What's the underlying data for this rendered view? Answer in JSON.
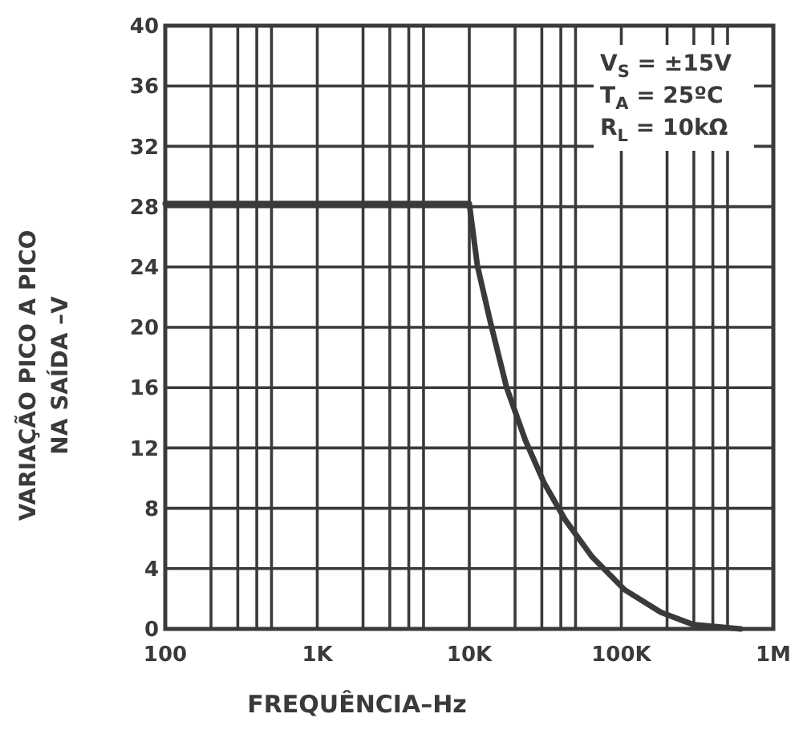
{
  "chart_data": {
    "type": "line",
    "xlabel": "FREQUÊNCIA–Hz",
    "ylabel": "VARIAÇÃO PICO A PICO\nNA SAÍDA –V",
    "log": "x",
    "x": [
      100,
      1000,
      10000,
      11300,
      13800,
      17600,
      23400,
      31000,
      43000,
      64000,
      105000,
      182000,
      295000,
      610000
    ],
    "series": [
      {
        "color": "#3a3a3a",
        "values": [
          28.2,
          28.2,
          28.2,
          24.1,
          20.3,
          16.0,
          12.5,
          9.7,
          7.2,
          4.8,
          2.6,
          1.1,
          0.3,
          0
        ]
      }
    ],
    "xlim": [
      100,
      1000000
    ],
    "xticks": [
      {
        "value": 100,
        "label": "100"
      },
      {
        "value": 200,
        "label": null
      },
      {
        "value": 300,
        "label": null
      },
      {
        "value": 400,
        "label": null
      },
      {
        "value": 500,
        "label": null
      },
      {
        "value": 1000,
        "label": "1K"
      },
      {
        "value": 2000,
        "label": null
      },
      {
        "value": 3000,
        "label": null
      },
      {
        "value": 4000,
        "label": null
      },
      {
        "value": 5000,
        "label": null
      },
      {
        "value": 10000,
        "label": "10K"
      },
      {
        "value": 20000,
        "label": null
      },
      {
        "value": 30000,
        "label": null
      },
      {
        "value": 40000,
        "label": null
      },
      {
        "value": 50000,
        "label": null
      },
      {
        "value": 100000,
        "label": "100K"
      },
      {
        "value": 200000,
        "label": null
      },
      {
        "value": 300000,
        "label": null
      },
      {
        "value": 400000,
        "label": null
      },
      {
        "value": 500000,
        "label": null
      },
      {
        "value": 1000000,
        "label": "1M"
      }
    ],
    "ylim": [
      0,
      40
    ],
    "yticks": [
      0,
      4,
      8,
      12,
      16,
      20,
      24,
      28,
      32,
      36,
      40
    ],
    "grid": true,
    "marker": "none",
    "line_style": "solid",
    "annotations": [
      "V$_{S}$ = ±15V",
      "T$_{A}$ = 25ºC",
      "R$_{L}$ = 10kΩ"
    ]
  }
}
